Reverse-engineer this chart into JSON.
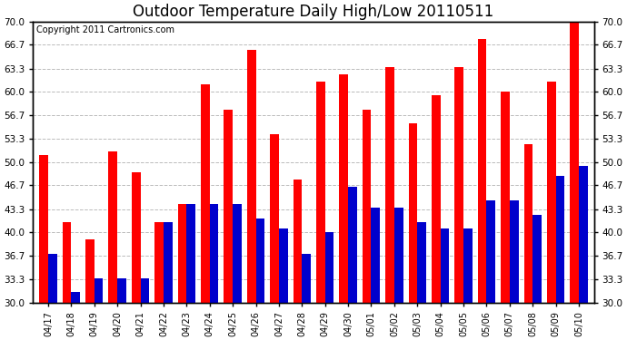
{
  "title": "Outdoor Temperature Daily High/Low 20110511",
  "copyright": "Copyright 2011 Cartronics.com",
  "categories": [
    "04/17",
    "04/18",
    "04/19",
    "04/20",
    "04/21",
    "04/22",
    "04/23",
    "04/24",
    "04/25",
    "04/26",
    "04/27",
    "04/28",
    "04/29",
    "04/30",
    "05/01",
    "05/02",
    "05/03",
    "05/04",
    "05/05",
    "05/06",
    "05/07",
    "05/08",
    "05/09",
    "05/10"
  ],
  "highs": [
    51.0,
    41.5,
    39.0,
    51.5,
    48.5,
    41.5,
    44.0,
    61.0,
    57.5,
    66.0,
    54.0,
    47.5,
    61.5,
    62.5,
    57.5,
    63.5,
    55.5,
    59.5,
    63.5,
    67.5,
    60.0,
    52.5,
    61.5,
    70.5
  ],
  "lows": [
    37.0,
    31.5,
    33.5,
    33.5,
    33.5,
    41.5,
    44.0,
    44.0,
    44.0,
    42.0,
    40.5,
    37.0,
    40.0,
    46.5,
    43.5,
    43.5,
    41.5,
    40.5,
    40.5,
    44.5,
    44.5,
    42.5,
    48.0,
    49.5
  ],
  "high_color": "#ff0000",
  "low_color": "#0000cc",
  "bg_color": "#ffffff",
  "grid_color": "#bbbbbb",
  "yticks": [
    30.0,
    33.3,
    36.7,
    40.0,
    43.3,
    46.7,
    50.0,
    53.3,
    56.7,
    60.0,
    63.3,
    66.7,
    70.0
  ],
  "ytick_labels": [
    "30.0",
    "33.3",
    "36.7",
    "40.0",
    "43.3",
    "46.7",
    "50.0",
    "53.3",
    "56.7",
    "60.0",
    "63.3",
    "66.7",
    "70.0"
  ],
  "ymin": 30.0,
  "ymax": 70.0,
  "title_fontsize": 12,
  "copyright_fontsize": 7
}
